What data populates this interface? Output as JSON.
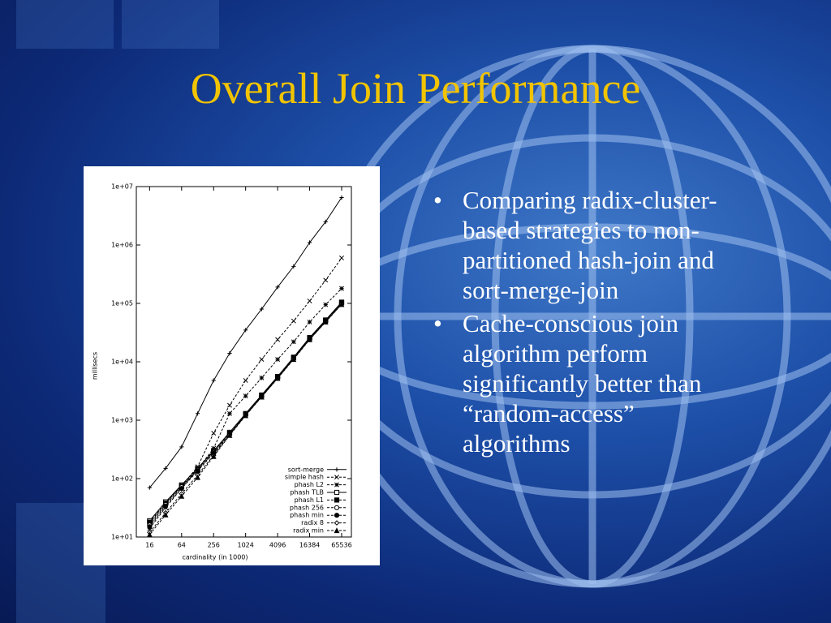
{
  "slide": {
    "title": "Overall Join Performance",
    "bullets": [
      "Comparing radix-cluster-based strategies to non-partitioned hash-join and sort-merge-join",
      "Cache-conscious join algorithm perform significantly better than “random-access” algorithms"
    ]
  },
  "chart_data": {
    "type": "line",
    "xlabel": "cardinality (in 1000)",
    "ylabel": "millisecs",
    "x": [
      16,
      32,
      64,
      128,
      256,
      512,
      1024,
      2048,
      4096,
      8192,
      16384,
      32768,
      65536
    ],
    "xlog": 2,
    "ylog": 10,
    "xlim": [
      9,
      100000
    ],
    "xticks": [
      16,
      64,
      256,
      1024,
      4096,
      16384,
      65536
    ],
    "ylim": [
      10,
      10000000
    ],
    "yticks": [
      {
        "value": 10,
        "label": "1e+01"
      },
      {
        "value": 100,
        "label": "1e+02"
      },
      {
        "value": 1000,
        "label": "1e+03"
      },
      {
        "value": 10000,
        "label": "1e+04"
      },
      {
        "value": 100000,
        "label": "1e+05"
      },
      {
        "value": 1000000,
        "label": "1e+06"
      },
      {
        "value": 10000000,
        "label": "1e+07"
      }
    ],
    "legend": "lower right",
    "series": [
      {
        "name": "sort-merge",
        "color": "#000000",
        "marker": "plus",
        "dashed": false,
        "values": [
          70,
          150,
          350,
          1300,
          4800,
          14000,
          35000,
          80000,
          190000,
          430000,
          1100000,
          2500000,
          6500000
        ]
      },
      {
        "name": "simple hash",
        "color": "#000000",
        "marker": "cross",
        "dashed": true,
        "values": [
          17,
          38,
          75,
          160,
          600,
          1800,
          4800,
          11000,
          24000,
          50000,
          110000,
          250000,
          600000
        ]
      },
      {
        "name": "phash L2",
        "color": "#000000",
        "marker": "star",
        "dashed": true,
        "values": [
          14,
          32,
          68,
          145,
          330,
          1300,
          2600,
          5300,
          11000,
          22000,
          48000,
          95000,
          180000
        ]
      },
      {
        "name": "phash TLB",
        "color": "#000000",
        "marker": "square-open",
        "dashed": false,
        "values": [
          19,
          40,
          78,
          150,
          300,
          620,
          1300,
          2700,
          5600,
          12000,
          26000,
          52000,
          105000
        ]
      },
      {
        "name": "phash L1",
        "color": "#000000",
        "marker": "square",
        "dashed": true,
        "values": [
          18,
          38,
          75,
          145,
          290,
          600,
          1280,
          2650,
          5500,
          11800,
          25500,
          51000,
          103000
        ]
      },
      {
        "name": "phash 256",
        "color": "#000000",
        "marker": "circle-open",
        "dashed": true,
        "values": [
          16,
          36,
          72,
          140,
          280,
          580,
          1250,
          2600,
          5400,
          11500,
          25000,
          50000,
          100000
        ]
      },
      {
        "name": "phash min",
        "color": "#000000",
        "marker": "circle",
        "dashed": true,
        "values": [
          15,
          34,
          68,
          135,
          270,
          570,
          1230,
          2550,
          5300,
          11300,
          24500,
          49000,
          98000
        ]
      },
      {
        "name": "radix 8",
        "color": "#000000",
        "marker": "diamond-open",
        "dashed": true,
        "values": [
          12,
          26,
          55,
          115,
          250,
          560,
          1220,
          2520,
          5250,
          11200,
          24200,
          48500,
          97000
        ]
      },
      {
        "name": "radix min",
        "color": "#000000",
        "marker": "triangle",
        "dashed": true,
        "values": [
          11,
          24,
          50,
          105,
          240,
          550,
          1200,
          2500,
          5200,
          11000,
          24000,
          48000,
          96000
        ]
      }
    ]
  }
}
